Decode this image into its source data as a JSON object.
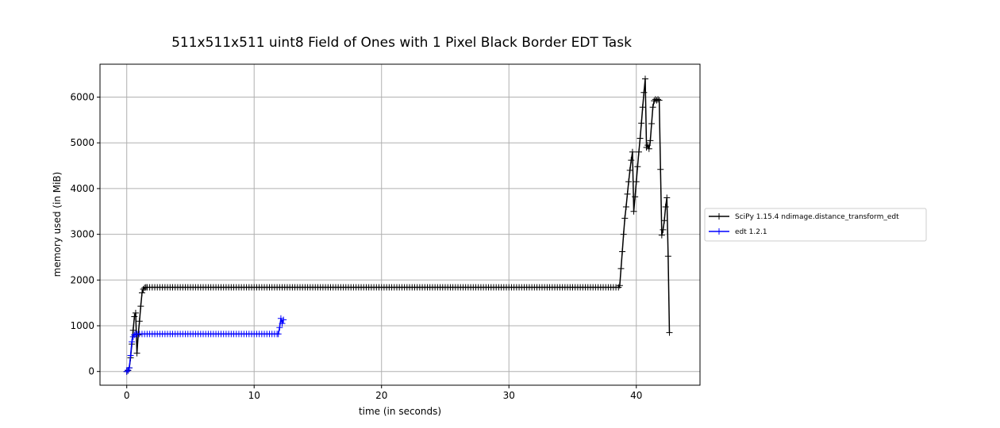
{
  "chart_data": {
    "type": "line",
    "title": "511x511x511 uint8 Field of Ones with 1 Pixel Black Border EDT Task",
    "xlabel": "time (in seconds)",
    "ylabel": "memory used (in MiB)",
    "xlim": [
      -2.1,
      45
    ],
    "ylim": [
      -300,
      6720
    ],
    "xticks": [
      0,
      10,
      20,
      30,
      40
    ],
    "yticks": [
      0,
      1000,
      2000,
      3000,
      4000,
      5000,
      6000
    ],
    "grid": true,
    "legend_position": "outside-right",
    "series": [
      {
        "name": "SciPy 1.15.4 ndimage.distance_transform_edt",
        "color": "#000000",
        "marker": "+",
        "points": [
          [
            0,
            0
          ],
          [
            0.1,
            20
          ],
          [
            0.2,
            80
          ],
          [
            0.3,
            300
          ],
          [
            0.4,
            600
          ],
          [
            0.5,
            900
          ],
          [
            0.6,
            1200
          ],
          [
            0.7,
            1280
          ],
          [
            0.8,
            400
          ],
          [
            0.9,
            800
          ],
          [
            1.0,
            1100
          ],
          [
            1.1,
            1430
          ],
          [
            1.2,
            1720
          ],
          [
            1.3,
            1800
          ],
          [
            1.4,
            1830
          ],
          [
            1.5,
            1840
          ],
          {
            "range": [
              1.6,
              38.6
            ],
            "step": 0.2,
            "y": 1840
          },
          [
            38.7,
            1880
          ],
          [
            38.8,
            2250
          ],
          [
            38.9,
            2620
          ],
          [
            39.0,
            3000
          ],
          [
            39.1,
            3350
          ],
          [
            39.2,
            3600
          ],
          [
            39.3,
            3880
          ],
          [
            39.4,
            4150
          ],
          [
            39.5,
            4400
          ],
          [
            39.6,
            4620
          ],
          [
            39.7,
            4800
          ],
          [
            39.8,
            3500
          ],
          [
            39.9,
            3820
          ],
          [
            40.0,
            4150
          ],
          [
            40.1,
            4480
          ],
          [
            40.2,
            4800
          ],
          [
            40.3,
            5100
          ],
          [
            40.4,
            5430
          ],
          [
            40.5,
            5780
          ],
          [
            40.6,
            6100
          ],
          [
            40.7,
            6400
          ],
          [
            40.8,
            4900
          ],
          [
            40.9,
            4950
          ],
          [
            41.0,
            4870
          ],
          [
            41.1,
            5050
          ],
          [
            41.2,
            5420
          ],
          [
            41.3,
            5780
          ],
          [
            41.4,
            5920
          ],
          [
            41.5,
            5950
          ],
          [
            41.6,
            5930
          ],
          [
            41.7,
            5950
          ],
          [
            41.8,
            5930
          ],
          [
            41.9,
            4420
          ],
          [
            42.0,
            2980
          ],
          [
            42.1,
            3100
          ],
          [
            42.2,
            3300
          ],
          [
            42.3,
            3600
          ],
          [
            42.4,
            3800
          ],
          [
            42.5,
            2520
          ],
          [
            42.6,
            850
          ]
        ]
      },
      {
        "name": "edt 1.2.1",
        "color": "#0000ff",
        "marker": "+",
        "points": [
          [
            0,
            0
          ],
          [
            0.1,
            30
          ],
          [
            0.2,
            80
          ],
          [
            0.3,
            350
          ],
          [
            0.4,
            650
          ],
          [
            0.5,
            760
          ],
          [
            0.6,
            800
          ],
          [
            0.7,
            820
          ],
          {
            "range": [
              0.8,
              11.8
            ],
            "step": 0.2,
            "y": 820
          },
          [
            11.9,
            820
          ],
          [
            12.0,
            960
          ],
          [
            12.1,
            1160
          ],
          [
            12.2,
            1050
          ],
          [
            12.3,
            1130
          ]
        ]
      }
    ]
  }
}
